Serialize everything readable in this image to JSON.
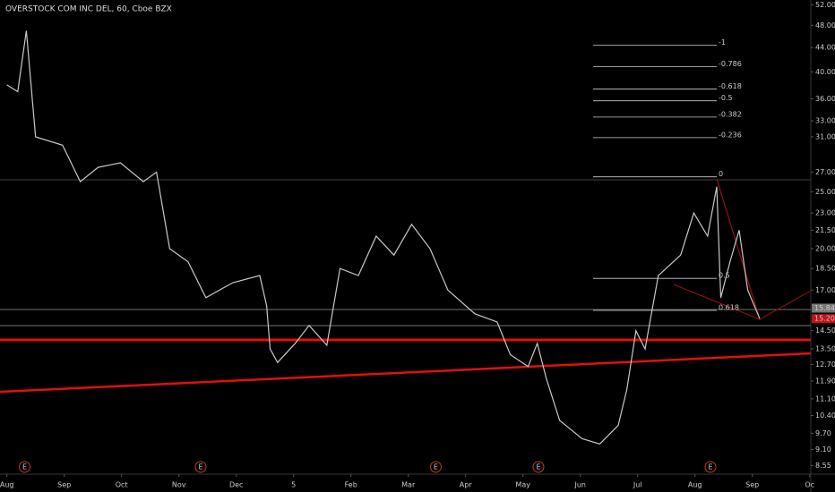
{
  "chart_data": {
    "type": "line",
    "title": "OVERSTOCK COM INC DEL, 60, Cboe BZX",
    "log_scale": true,
    "color": "#c8c8c8",
    "x": [
      0.0,
      0.19,
      0.34,
      0.5,
      0.97,
      1.28,
      1.59,
      1.98,
      2.38,
      2.61,
      2.84,
      3.16,
      3.47,
      3.94,
      4.41,
      4.53,
      4.59,
      4.72,
      5.03,
      5.27,
      5.58,
      5.81,
      6.13,
      6.44,
      6.75,
      7.06,
      7.38,
      7.69,
      8.16,
      8.55,
      8.78,
      9.09,
      9.25,
      9.41,
      9.64,
      10.03,
      10.34,
      10.66,
      10.81,
      10.97,
      11.13,
      11.36,
      11.75,
      11.98,
      12.22,
      12.38,
      12.45,
      12.61,
      12.77,
      12.92,
      13.13
    ],
    "values": [
      38,
      37,
      47,
      31,
      30,
      26,
      27.5,
      28,
      26,
      27,
      20,
      19,
      16.5,
      17.5,
      18,
      16,
      13.5,
      12.8,
      13.8,
      14.8,
      13.7,
      18.5,
      18,
      21,
      19.5,
      22,
      20,
      17,
      15.5,
      15,
      13.2,
      12.6,
      13.8,
      12,
      10.2,
      9.5,
      9.3,
      10,
      11.5,
      14.5,
      13.5,
      18,
      19.5,
      23,
      21,
      25.5,
      16.5,
      19,
      21.5,
      17,
      15.2
    ],
    "xlim": [
      -0.12,
      14.02
    ],
    "xticks": [
      {
        "value": 0,
        "label": "Aug"
      },
      {
        "value": 1,
        "label": "Sep"
      },
      {
        "value": 2,
        "label": "Oct"
      },
      {
        "value": 3,
        "label": "Nov"
      },
      {
        "value": 4,
        "label": "Dec"
      },
      5,
      {
        "value": 6,
        "label": "Feb"
      },
      {
        "value": 7,
        "label": "Mar"
      },
      {
        "value": 8,
        "label": "Apr"
      },
      {
        "value": 9,
        "label": "May"
      },
      {
        "value": 10,
        "label": "Jun"
      },
      {
        "value": 11,
        "label": "Jul"
      },
      {
        "value": 12,
        "label": "Aug"
      },
      {
        "value": 13,
        "label": "Sep"
      },
      {
        "value": 14,
        "label": "Oc"
      }
    ],
    "ylim": [
      8.5,
      53
    ],
    "yticks": [
      {
        "value": 52,
        "label": "52.00"
      },
      {
        "value": 48,
        "label": "48.00"
      },
      {
        "value": 44,
        "label": "44.00"
      },
      {
        "value": 40,
        "label": "40.00"
      },
      {
        "value": 36,
        "label": "36.00"
      },
      {
        "value": 33,
        "label": "33.00"
      },
      {
        "value": 31,
        "label": "31.00"
      },
      {
        "value": 27,
        "label": "27.00"
      },
      {
        "value": 25,
        "label": "25.00"
      },
      {
        "value": 23,
        "label": "23.00"
      },
      {
        "value": 21.5,
        "label": "21.50"
      },
      {
        "value": 20,
        "label": "20.00"
      },
      {
        "value": 18.5,
        "label": "18.50"
      },
      {
        "value": 17,
        "label": "17.00"
      },
      {
        "value": 14.5,
        "label": "14.50"
      },
      {
        "value": 13.5,
        "label": "13.50"
      },
      {
        "value": 12.7,
        "label": "12.70"
      },
      {
        "value": 11.9,
        "label": "11.90"
      },
      {
        "value": 11.1,
        "label": "11.10"
      },
      {
        "value": 10.4,
        "label": "10.40"
      },
      {
        "value": 9.7,
        "label": "9.70"
      },
      {
        "value": 9.1,
        "label": "9.10"
      },
      {
        "value": 8.55,
        "label": "8.55"
      }
    ],
    "price_labels": [
      {
        "value": 15.84,
        "label": "15.84",
        "color": "#787878"
      },
      {
        "value": 15.2,
        "label": "15.20",
        "color": "#c0131a"
      }
    ],
    "fib_levels": [
      {
        "value": 44.4,
        "label": "-1"
      },
      {
        "value": 40.8,
        "label": "-0.786"
      },
      {
        "value": 37.4,
        "label": "-0.618"
      },
      {
        "value": 35.7,
        "label": "-0.5"
      },
      {
        "value": 33.5,
        "label": "-0.382"
      },
      {
        "value": 30.9,
        "label": "-0.236"
      },
      {
        "value": 26.5,
        "label": "0"
      },
      {
        "value": 17.8,
        "label": "0.5"
      },
      {
        "value": 15.7,
        "label": "0.618"
      }
    ],
    "events": [
      {
        "x": 0.31,
        "label": "E"
      },
      {
        "x": 3.38,
        "label": "E"
      },
      {
        "x": 7.48,
        "label": "E"
      },
      {
        "x": 9.27,
        "label": "E"
      },
      {
        "x": 12.27,
        "label": "E"
      }
    ]
  }
}
